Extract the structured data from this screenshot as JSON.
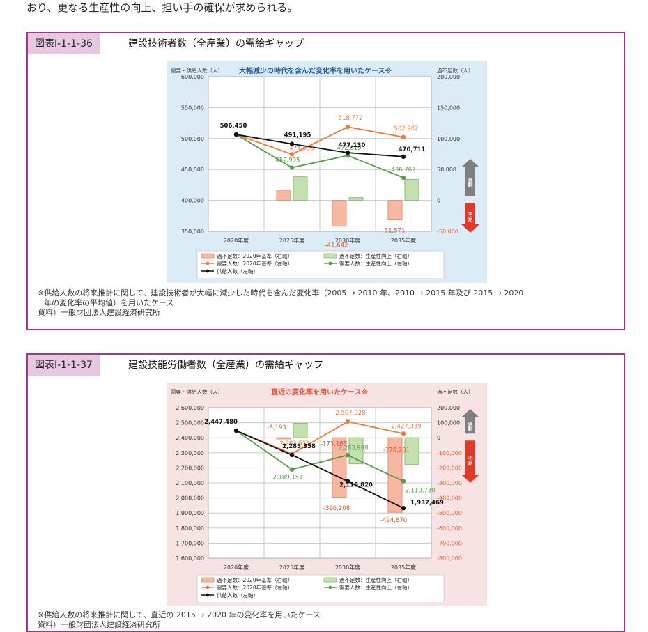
{
  "intro_text": "おり、更なる生産性の向上、担い手の確保が求められる。",
  "colors": {
    "border": "#a8328c",
    "label_bg": "#e6c9e0",
    "demand_base": "#f07a3c",
    "demand_prod": "#5a9a4a",
    "supply": "#111111",
    "bar_base": "#f08a6a",
    "bar_prod": "#8bbf6a",
    "arrow_over": "#888888",
    "arrow_short": "#e23a2a"
  },
  "figures": [
    {
      "label": "図表Ⅰ-1-1-36",
      "title": "建設技術者数（全産業）の需給ギャップ",
      "notes": [
        "※供給人数の将来推計に関して、建設技術者が大幅に減少した時代を含んだ変化率（2005 → 2010 年、2010 → 2015 年及び 2015 → 2020",
        "年の変化率の平均値）を用いたケース",
        "資料）一般財団法人建設経済研究所"
      ],
      "chart_data": {
        "type": "line",
        "title": "大幅減少の時代を含んだ変化率を用いたケース※",
        "left_axis_label": "需要・供給人数（人）",
        "right_axis_label": "過不足数（人）",
        "categories": [
          "2020年度",
          "2025年度",
          "2030年度",
          "2035年度"
        ],
        "left_ylim": [
          350000,
          600000
        ],
        "left_ticks": [
          "350,000",
          "400,000",
          "450,000",
          "500,000",
          "550,000",
          "600,000"
        ],
        "right_ylim": [
          -50000,
          200000
        ],
        "right_ticks": [
          "-50,000",
          "0",
          "50,000",
          "100,000",
          "150,000",
          "200,000"
        ],
        "arrow_over": "過剰",
        "arrow_short": "不足",
        "series": [
          {
            "name": "需要人数：2020年基準（左軸）",
            "axis": "left",
            "kind": "line",
            "color": "#f07a3c",
            "values": [
              506450,
              474598,
              518772,
              502282
            ],
            "labels": [
              "",
              "474,598",
              "518,772",
              "502,282"
            ]
          },
          {
            "name": "需要人数：生産性向上（左軸）",
            "axis": "left",
            "kind": "line",
            "color": "#5a9a4a",
            "values": [
              506450,
              452995,
              472619,
              436767
            ],
            "labels": [
              "",
              "452,995",
              "472,619",
              "436,767"
            ]
          },
          {
            "name": "供給人数（左軸）",
            "axis": "left",
            "kind": "line",
            "color": "#111111",
            "values": [
              506450,
              491195,
              477130,
              470711
            ],
            "labels": [
              "506,450",
              "491,195",
              "477,130",
              "470,711"
            ]
          },
          {
            "name": "過不足数：2020年基準（右軸）",
            "axis": "right",
            "kind": "bar",
            "color": "#f08a6a",
            "values": [
              null,
              16597,
              -41642,
              -31571
            ],
            "labels": [
              "",
              "",
              "-41,642",
              "-31,571"
            ]
          },
          {
            "name": "過不足数：生産性向上（右軸）",
            "axis": "right",
            "kind": "bar",
            "color": "#8bbf6a",
            "values": [
              null,
              38200,
              4511,
              33944
            ],
            "labels": [
              "",
              "",
              "",
              ""
            ]
          }
        ]
      }
    },
    {
      "label": "図表Ⅰ-1-1-37",
      "title": "建設技能労働者数（全産業）の需給ギャップ",
      "notes": [
        "※供給人数の将来推計に関して、直近の 2015 → 2020 年の変化率を用いたケース",
        "資料）一般財団法人建設経済研究所"
      ],
      "chart_data": {
        "type": "line",
        "title": "直近の変化率を用いたケース※",
        "left_axis_label": "需要・供給人数（人）",
        "right_axis_label": "過不足数（人）",
        "categories": [
          "2020年度",
          "2025年度",
          "2030年度",
          "2035年度"
        ],
        "left_ylim": [
          1600000,
          2600000
        ],
        "left_ticks": [
          "1,600,000",
          "1,700,000",
          "1,800,000",
          "1,900,000",
          "2,000,000",
          "2,100,000",
          "2,200,000",
          "2,300,000",
          "2,400,000",
          "2,500,000",
          "2,600,000"
        ],
        "right_ylim": [
          -800000,
          200000
        ],
        "right_ticks": [
          "-800,000",
          "-700,000",
          "-600,000",
          "-500,000",
          "-400,000",
          "-300,000",
          "-200,000",
          "-100,000",
          "0",
          "100,000",
          "200,000"
        ],
        "arrow_over": "過剰",
        "arrow_short": "不足",
        "series": [
          {
            "name": "需要人数：2020年基準（左軸）",
            "axis": "left",
            "kind": "line",
            "color": "#f07a3c",
            "values": [
              2447480,
              2293551,
              2507028,
              2427339
            ],
            "labels": [
              "",
              "2,293,551",
              "2,507,028",
              "2,427,339"
            ]
          },
          {
            "name": "需要人数：生産性向上（左軸）",
            "axis": "left",
            "kind": "line",
            "color": "#5a9a4a",
            "values": [
              2447480,
              2189151,
              2283988,
              2110730
            ],
            "labels": [
              "",
              "2,189,151",
              "2,283,988",
              "2,110,730"
            ]
          },
          {
            "name": "供給人数（左軸）",
            "axis": "left",
            "kind": "line",
            "color": "#111111",
            "values": [
              2447480,
              2285358,
              2110820,
              1932469
            ],
            "labels": [
              "2,447,480",
              "2,285,358",
              "2,110,820",
              "1,932,469"
            ]
          },
          {
            "name": "過不足数：2020年基準（右軸）",
            "axis": "right",
            "kind": "bar",
            "color": "#f08a6a",
            "values": [
              null,
              -8193,
              -396208,
              -494870
            ],
            "labels": [
              "",
              "-8,193",
              "-396,208",
              "-494,870"
            ]
          },
          {
            "name": "過不足数：生産性向上（右軸）",
            "axis": "right",
            "kind": "bar",
            "color": "#8bbf6a",
            "values": [
              null,
              96207,
              -173168,
              -178261
            ],
            "labels": [
              "",
              "",
              "-173,168",
              "-178,261"
            ]
          }
        ]
      }
    }
  ]
}
